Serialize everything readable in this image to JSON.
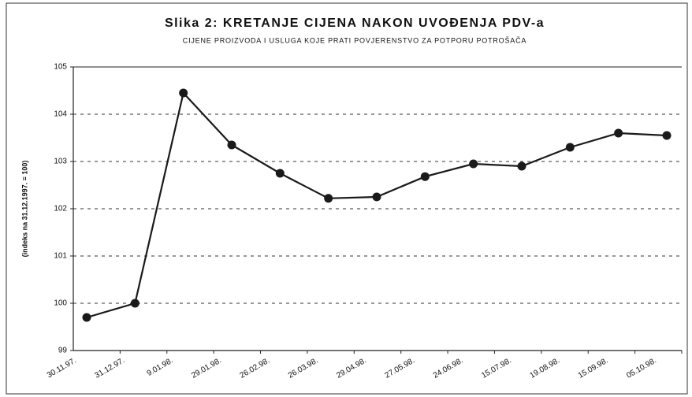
{
  "chart_data": {
    "type": "line",
    "title": "Slika 2: KRETANJE CIJENA NAKON UVOĐENJA PDV-a",
    "subtitle": "CIJENE PROIZVODA I USLUGA KOJE PRATI POVJERENSTVO ZA POTPORU POTROŠAČA",
    "y_label": "(indeks na 31.12.1997. = 100)",
    "categories": [
      "30.11.97.",
      "31.12.97.",
      "9.01.98.",
      "29.01.98.",
      "26.02.98.",
      "26.03.98.",
      "29.04.98.",
      "27.05.98.",
      "24.06.98.",
      "15.07.98.",
      "19.08.98.",
      "15.09.98.",
      "05.10.98."
    ],
    "values": [
      99.7,
      100.0,
      104.45,
      103.35,
      102.75,
      102.22,
      102.25,
      102.68,
      102.95,
      102.9,
      103.3,
      103.6,
      103.55
    ],
    "color": "#1a1a1a",
    "ylim": [
      99,
      105
    ],
    "yticks": [
      99,
      100,
      101,
      102,
      103,
      104,
      105
    ],
    "grid": true
  }
}
